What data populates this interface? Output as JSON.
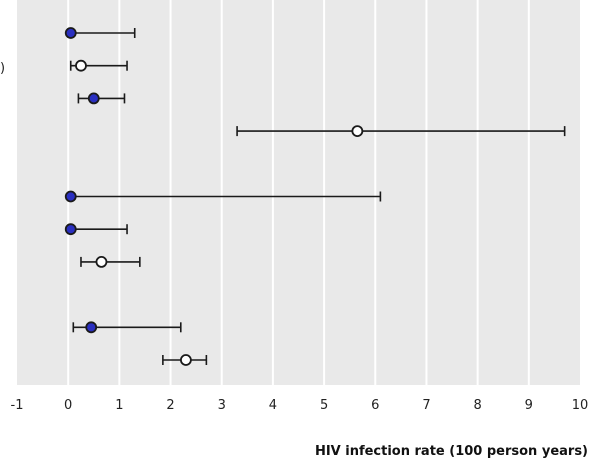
{
  "chart_data": {
    "type": "scatter",
    "subtype": "forest-plot",
    "xlabel": "HIV infection rate (100 person years)",
    "xlim": [
      -1,
      10
    ],
    "xticks": [
      -1,
      0,
      1,
      2,
      3,
      4,
      5,
      6,
      7,
      8,
      9,
      10
    ],
    "grid": true,
    "points": [
      {
        "row": 1,
        "estimate": 0.05,
        "lower": 0.0,
        "upper": 1.3,
        "filled": true
      },
      {
        "row": 2,
        "estimate": 0.25,
        "lower": 0.05,
        "upper": 1.15,
        "filled": false
      },
      {
        "row": 3,
        "estimate": 0.5,
        "lower": 0.2,
        "upper": 1.1,
        "filled": true
      },
      {
        "row": 4,
        "estimate": 5.65,
        "lower": 3.3,
        "upper": 9.7,
        "filled": false
      },
      {
        "row": 6,
        "estimate": 0.05,
        "lower": 0.0,
        "upper": 6.1,
        "filled": true
      },
      {
        "row": 7,
        "estimate": 0.05,
        "lower": 0.0,
        "upper": 1.15,
        "filled": true
      },
      {
        "row": 8,
        "estimate": 0.65,
        "lower": 0.25,
        "upper": 1.4,
        "filled": false
      },
      {
        "row": 10,
        "estimate": 0.45,
        "lower": 0.1,
        "upper": 2.2,
        "filled": true
      },
      {
        "row": 11,
        "estimate": 2.3,
        "lower": 1.85,
        "upper": 2.7,
        "filled": false
      }
    ],
    "colors": {
      "filled_marker": "#2a2fc0",
      "open_marker": "#ffffff",
      "marker_stroke": "#1a1a1a",
      "plot_background": "#e9e9e9",
      "gridline": "#ffffff",
      "whisker": "#1a1a1a"
    }
  },
  "left_clip_label": ")"
}
